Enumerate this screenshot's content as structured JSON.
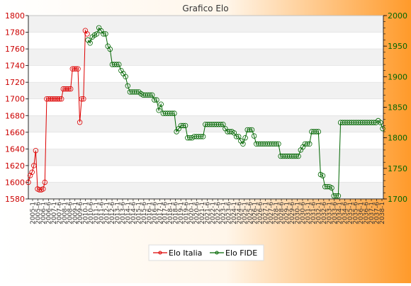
{
  "chart_data": {
    "type": "line",
    "title": "Grafico Elo",
    "xlabel": "",
    "ylabel": "",
    "y_left": {
      "ylim": [
        1580,
        1800
      ],
      "ticks": [
        1580,
        1600,
        1620,
        1640,
        1660,
        1680,
        1700,
        1720,
        1740,
        1760,
        1780,
        1800
      ],
      "color": "#cc0000"
    },
    "y_right": {
      "ylim": [
        1700,
        2000
      ],
      "ticks": [
        1700,
        1750,
        1800,
        1850,
        1900,
        1950,
        2000
      ],
      "color": "#006600"
    },
    "grid": "horizontal bands",
    "legend_position": "bottom-center",
    "x_tick_labels": [
      "2005-1",
      "2005-6",
      "2006-1",
      "2006-6",
      "2007-1",
      "2007-6",
      "2008-1",
      "2008-6",
      "2009-1",
      "2009-6",
      "2010-1",
      "2010-6",
      "2011-1",
      "2011-6",
      "2012-1",
      "2012-6",
      "2013-1",
      "2013-6",
      "2014-1",
      "2014-6",
      "2015-1",
      "2015-6",
      "2016-1",
      "2016-6",
      "2017-1",
      "2017-6",
      "2018-1",
      "2018-6",
      "2019-1",
      "2019-6",
      "2020-1",
      "2020-6",
      "2021-1",
      "2021-6",
      "2022-1",
      "2022-6",
      "2023-1",
      "2023-6",
      "2024-1",
      "2024-6",
      "2025-1",
      "2025-6",
      "2026-1",
      "2026-6",
      "2027-1",
      "2027-6",
      "2028-1",
      "2028-6",
      "2029-1",
      "2029-6",
      "2030-1",
      "2030-6",
      "2031-1",
      "2031-6",
      "2032-1",
      "2032-6",
      "2033-1",
      "2033-6",
      "2034-1",
      "2034-6",
      "2035-1",
      "2035-6",
      "2036-1",
      "2036-6",
      "2037-1",
      "2037-6",
      "2038-1"
    ],
    "series": [
      {
        "name": "Elo Italia",
        "axis": "left",
        "color": "#dd0000",
        "values": [
          1600,
          1608,
          1612,
          1620,
          1638,
          1592,
          1591,
          1591,
          1592,
          1600,
          1700,
          1700,
          1700,
          1700,
          1700,
          1700,
          1700,
          1700,
          1700,
          1712,
          1712,
          1712,
          1712,
          1712,
          1736,
          1736,
          1736,
          1736,
          1672,
          1700,
          1700,
          1782,
          1778
        ]
      },
      {
        "name": "Elo FIDE",
        "axis": "right",
        "color": "#006600",
        "values": [
          1960,
          1955,
          1965,
          1968,
          1970,
          1980,
          1975,
          1970,
          1970,
          1950,
          1945,
          1920,
          1920,
          1920,
          1920,
          1910,
          1905,
          1900,
          1885,
          1875,
          1875,
          1875,
          1875,
          1875,
          1872,
          1870,
          1870,
          1870,
          1870,
          1870,
          1862,
          1862,
          1845,
          1855,
          1840,
          1840,
          1840,
          1840,
          1840,
          1840,
          1810,
          1815,
          1820,
          1820,
          1820,
          1800,
          1800,
          1800,
          1802,
          1802,
          1802,
          1802,
          1802,
          1822,
          1822,
          1822,
          1822,
          1822,
          1822,
          1822,
          1822,
          1822,
          1815,
          1810,
          1810,
          1810,
          1808,
          1802,
          1802,
          1795,
          1790,
          1800,
          1813,
          1813,
          1813,
          1803,
          1790,
          1790,
          1790,
          1790,
          1790,
          1790,
          1790,
          1790,
          1790,
          1790,
          1790,
          1770,
          1770,
          1770,
          1770,
          1770,
          1770,
          1770,
          1770,
          1770,
          1780,
          1785,
          1790,
          1790,
          1790,
          1810,
          1810,
          1810,
          1810,
          1740,
          1738,
          1720,
          1720,
          1720,
          1718,
          1705,
          1705,
          1705,
          1825,
          1825,
          1825,
          1825,
          1825,
          1825,
          1825,
          1825,
          1825,
          1825,
          1825,
          1825,
          1825,
          1825,
          1825,
          1825,
          1825,
          1828,
          1825,
          1815
        ]
      }
    ]
  }
}
